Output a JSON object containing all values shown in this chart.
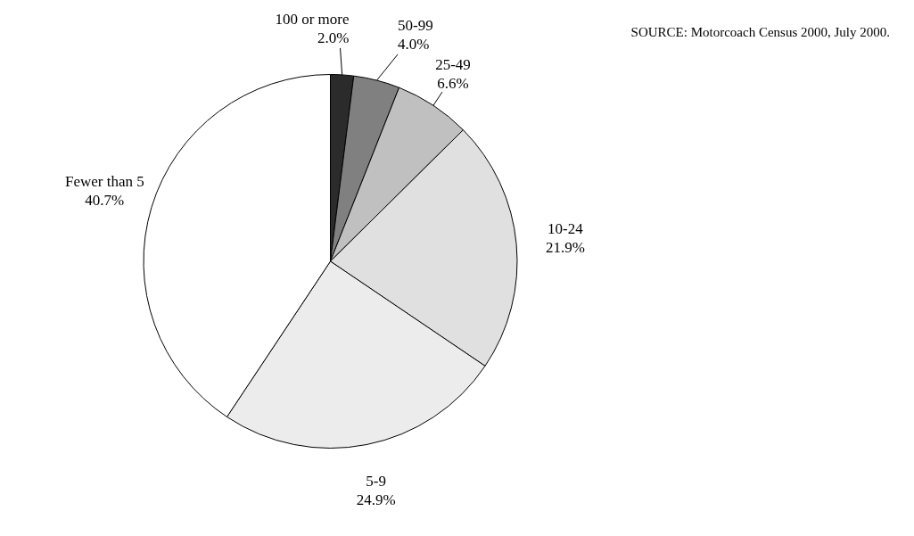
{
  "chart_data": {
    "type": "pie",
    "categories": [
      "100 or more",
      "50-99",
      "25-49",
      "10-24",
      "5-9",
      "Fewer than 5"
    ],
    "values": [
      2.0,
      4.0,
      6.6,
      21.9,
      24.9,
      40.7
    ],
    "value_labels": [
      "2.0%",
      "4.0%",
      "6.6%",
      "21.9%",
      "24.9%",
      "40.7%"
    ],
    "colors": [
      "#2b2b2b",
      "#808080",
      "#c0c0c0",
      "#e0e0e0",
      "#ececec",
      "#ffffff"
    ],
    "annotations": [
      "SOURCE: Motorcoach Census 2000, July 2000."
    ],
    "legend": false
  }
}
